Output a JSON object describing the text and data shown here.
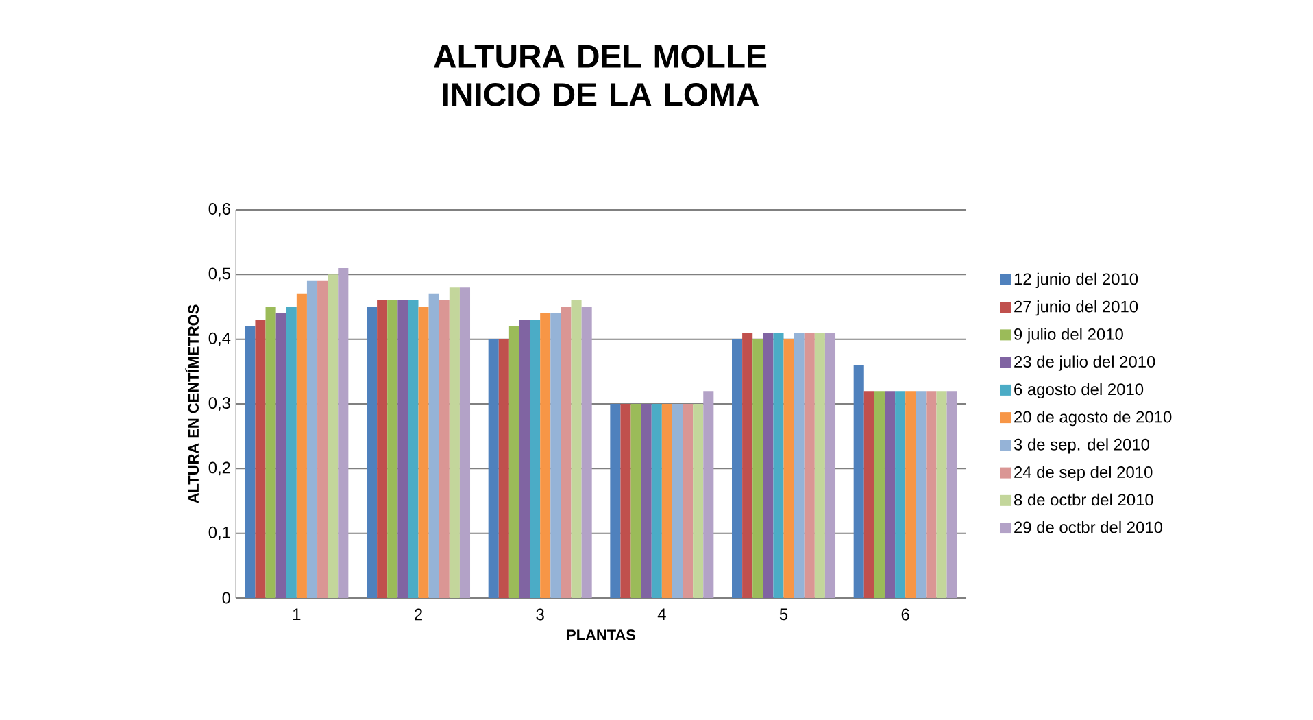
{
  "chart_data": {
    "type": "bar",
    "title": "ALTURA DEL MOLLE INICIO DE LA LOMA",
    "xlabel": "PLANTAS",
    "ylabel": "ALTURA EN CENTÍMETROS",
    "categories": [
      "1",
      "2",
      "3",
      "4",
      "5",
      "6"
    ],
    "ylim": [
      0,
      0.6
    ],
    "yticks": [
      0,
      {
        "value": 0.1,
        "label": "0,1"
      },
      {
        "value": 0.2,
        "label": "0,2"
      },
      {
        "value": 0.3,
        "label": "0,3"
      },
      {
        "value": 0.4,
        "label": "0,4"
      },
      {
        "value": 0.5,
        "label": "0,5"
      },
      {
        "value": 0.6,
        "label": "0,6"
      }
    ],
    "grid": "y",
    "legend": "right",
    "series": [
      {
        "name": "12 junio del 2010",
        "color": "#4f81bd",
        "values": [
          0.42,
          0.45,
          0.4,
          0.3,
          0.4,
          0.36
        ]
      },
      {
        "name": "27 junio del 2010",
        "color": "#c0504d",
        "values": [
          0.43,
          0.46,
          0.4,
          0.3,
          0.41,
          0.32
        ]
      },
      {
        "name": "9 julio del 2010",
        "color": "#9bbb59",
        "values": [
          0.45,
          0.46,
          0.42,
          0.3,
          0.4,
          0.32
        ]
      },
      {
        "name": "23 de julio del 2010",
        "color": "#8064a2",
        "values": [
          0.44,
          0.46,
          0.43,
          0.3,
          0.41,
          0.32
        ]
      },
      {
        "name": "6 agosto del 2010",
        "color": "#4bacc6",
        "values": [
          0.45,
          0.46,
          0.43,
          0.3,
          0.41,
          0.32
        ]
      },
      {
        "name": "20 de agosto de 2010",
        "color": "#f79646",
        "values": [
          0.47,
          0.45,
          0.44,
          0.3,
          0.4,
          0.32
        ]
      },
      {
        "name": "3 de sep. del 2010",
        "color": "#95b3d7",
        "values": [
          0.49,
          0.47,
          0.44,
          0.3,
          0.41,
          0.32
        ]
      },
      {
        "name": "24 de sep del 2010",
        "color": "#da9694",
        "values": [
          0.49,
          0.46,
          0.45,
          0.3,
          0.41,
          0.32
        ]
      },
      {
        "name": "8 de octbr del 2010",
        "color": "#c3d69b",
        "values": [
          0.5,
          0.48,
          0.46,
          0.3,
          0.41,
          0.32
        ]
      },
      {
        "name": "29 de octbr del 2010",
        "color": "#b3a2c7",
        "values": [
          0.51,
          0.48,
          0.45,
          0.32,
          0.41,
          0.32
        ]
      }
    ]
  }
}
